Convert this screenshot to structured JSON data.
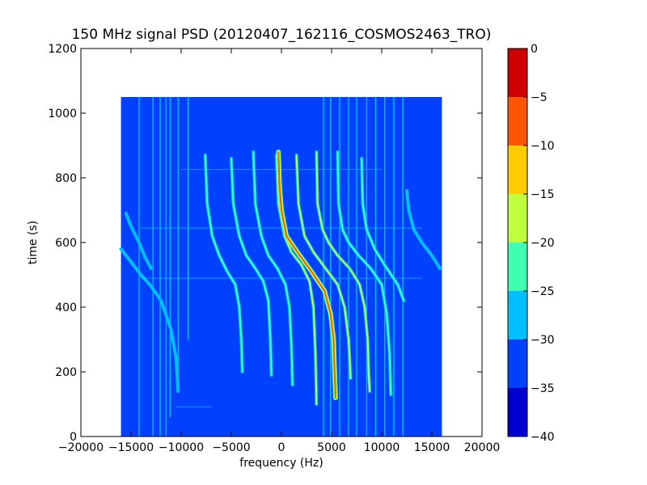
{
  "chart_data": {
    "type": "heatmap",
    "title": "150 MHz signal PSD (20120407_162116_COSMOS2463_TRO)",
    "xlabel": "frequency (Hz)",
    "ylabel": "time (s)",
    "xlim": [
      -20000,
      20000
    ],
    "ylim": [
      0,
      1200
    ],
    "xticks": [
      -20000,
      -15000,
      -10000,
      -5000,
      0,
      5000,
      10000,
      15000,
      20000
    ],
    "xtick_labels": [
      "−20000",
      "−15000",
      "−10000",
      "−5000",
      "0",
      "5000",
      "10000",
      "15000",
      "20000"
    ],
    "yticks": [
      0,
      200,
      400,
      600,
      800,
      1000,
      1200
    ],
    "ytick_labels": [
      "0",
      "200",
      "400",
      "600",
      "800",
      "1000",
      "1200"
    ],
    "data_extent": {
      "x": [
        -16000,
        16000
      ],
      "y": [
        0,
        1050
      ]
    },
    "grid": false,
    "background_level": -35,
    "colorbar": {
      "levels": [
        -40,
        -35,
        -30,
        -25,
        -20,
        -15,
        -10,
        -5,
        0
      ],
      "tick_labels": [
        "−40",
        "−35",
        "−30",
        "−25",
        "−20",
        "−15",
        "−10",
        "−5",
        "0"
      ],
      "colors": [
        "#0000cd",
        "#0040ff",
        "#00bfff",
        "#40ffb0",
        "#bfff40",
        "#ffcc00",
        "#ff5500",
        "#cc0000"
      ]
    },
    "vertical_lines": [
      {
        "x": -14200,
        "t": [
          0,
          1050
        ],
        "level": -30
      },
      {
        "x": -12800,
        "t": [
          0,
          1050
        ],
        "level": -30
      },
      {
        "x": -12100,
        "t": [
          0,
          1050
        ],
        "level": -30
      },
      {
        "x": -11500,
        "t": [
          0,
          1050
        ],
        "level": -30
      },
      {
        "x": -11100,
        "t": [
          60,
          1050
        ],
        "level": -30
      },
      {
        "x": -10300,
        "t": [
          140,
          1050
        ],
        "level": -30
      },
      {
        "x": -9300,
        "t": [
          300,
          1050
        ],
        "level": -30
      },
      {
        "x": 4200,
        "t": [
          0,
          1050
        ],
        "level": -30
      },
      {
        "x": 4900,
        "t": [
          0,
          1050
        ],
        "level": -30
      },
      {
        "x": 5800,
        "t": [
          0,
          1050
        ],
        "level": -30
      },
      {
        "x": 6700,
        "t": [
          0,
          1050
        ],
        "level": -30
      },
      {
        "x": 7500,
        "t": [
          0,
          1050
        ],
        "level": -30
      },
      {
        "x": 8500,
        "t": [
          0,
          1050
        ],
        "level": -30
      },
      {
        "x": 9400,
        "t": [
          0,
          1050
        ],
        "level": -30
      },
      {
        "x": 10300,
        "t": [
          0,
          1050
        ],
        "level": -30
      },
      {
        "x": 11200,
        "t": [
          0,
          1050
        ],
        "level": -30
      },
      {
        "x": 12100,
        "t": [
          0,
          1050
        ],
        "level": -30
      }
    ],
    "series": [
      {
        "points": [
          [
            -16000,
            580
          ],
          [
            -15000,
            540
          ],
          [
            -14000,
            500
          ],
          [
            -13000,
            465
          ],
          [
            -12000,
            420
          ],
          [
            -11000,
            330
          ],
          [
            -10500,
            240
          ],
          [
            -10300,
            140
          ]
        ],
        "level": -30
      },
      {
        "points": [
          [
            -15500,
            690
          ],
          [
            -15000,
            650
          ],
          [
            -14200,
            600
          ],
          [
            -13600,
            555
          ],
          [
            -13000,
            520
          ]
        ],
        "level": -30
      },
      {
        "points": [
          [
            -7600,
            870
          ],
          [
            -7400,
            720
          ],
          [
            -6900,
            620
          ],
          [
            -6200,
            560
          ],
          [
            -5400,
            510
          ],
          [
            -4600,
            470
          ],
          [
            -4200,
            400
          ],
          [
            -4000,
            300
          ],
          [
            -3900,
            200
          ]
        ],
        "level": -25
      },
      {
        "points": [
          [
            -5000,
            860
          ],
          [
            -4800,
            720
          ],
          [
            -4200,
            620
          ],
          [
            -3500,
            560
          ],
          [
            -2600,
            520
          ],
          [
            -1800,
            480
          ],
          [
            -1300,
            420
          ],
          [
            -1100,
            300
          ],
          [
            -1000,
            190
          ]
        ],
        "level": -25
      },
      {
        "points": [
          [
            -2800,
            880
          ],
          [
            -2600,
            720
          ],
          [
            -2000,
            620
          ],
          [
            -1300,
            560
          ],
          [
            -400,
            520
          ],
          [
            400,
            470
          ],
          [
            800,
            400
          ],
          [
            1000,
            280
          ],
          [
            1100,
            160
          ]
        ],
        "level": -25
      },
      {
        "points": [
          [
            -500,
            870
          ],
          [
            -300,
            720
          ],
          [
            300,
            620
          ],
          [
            1000,
            570
          ],
          [
            2000,
            530
          ],
          [
            2800,
            480
          ],
          [
            3200,
            400
          ],
          [
            3400,
            250
          ],
          [
            3500,
            100
          ]
        ],
        "level": -20
      },
      {
        "points": [
          [
            -300,
            880
          ],
          [
            -200,
            780
          ],
          [
            0,
            700
          ],
          [
            500,
            620
          ],
          [
            1600,
            570
          ],
          [
            3000,
            510
          ],
          [
            4300,
            450
          ],
          [
            4900,
            380
          ],
          [
            5200,
            300
          ],
          [
            5300,
            200
          ],
          [
            5400,
            120
          ]
        ],
        "level": -10
      },
      {
        "points": [
          [
            1500,
            870
          ],
          [
            1700,
            720
          ],
          [
            2300,
            620
          ],
          [
            3200,
            570
          ],
          [
            4400,
            520
          ],
          [
            5600,
            470
          ],
          [
            6300,
            400
          ],
          [
            6700,
            300
          ],
          [
            6900,
            180
          ]
        ],
        "level": -20
      },
      {
        "points": [
          [
            3500,
            880
          ],
          [
            3600,
            720
          ],
          [
            4100,
            640
          ],
          [
            4700,
            600
          ],
          [
            5600,
            560
          ],
          [
            6800,
            520
          ],
          [
            7800,
            470
          ],
          [
            8300,
            400
          ],
          [
            8600,
            300
          ],
          [
            8700,
            200
          ],
          [
            8800,
            140
          ]
        ],
        "level": -20
      },
      {
        "points": [
          [
            5600,
            880
          ],
          [
            5700,
            720
          ],
          [
            6100,
            640
          ],
          [
            6700,
            600
          ],
          [
            7700,
            560
          ],
          [
            8900,
            520
          ],
          [
            10000,
            470
          ],
          [
            10500,
            380
          ],
          [
            10800,
            250
          ],
          [
            10900,
            130
          ]
        ],
        "level": -25
      },
      {
        "points": [
          [
            8000,
            860
          ],
          [
            8100,
            720
          ],
          [
            8500,
            640
          ],
          [
            9300,
            580
          ],
          [
            10300,
            530
          ],
          [
            11600,
            470
          ],
          [
            12200,
            420
          ]
        ],
        "level": -25
      },
      {
        "points": [
          [
            12500,
            760
          ],
          [
            12700,
            700
          ],
          [
            13200,
            640
          ],
          [
            14000,
            600
          ],
          [
            15000,
            560
          ],
          [
            15800,
            520
          ]
        ],
        "level": -30
      }
    ],
    "horizontal_artifacts": [
      {
        "t": 826,
        "x": [
          -10000,
          10000
        ],
        "level": -30
      },
      {
        "t": 645,
        "x": [
          -14000,
          14000
        ],
        "level": -30
      },
      {
        "t": 490,
        "x": [
          -14000,
          14000
        ],
        "level": -30
      },
      {
        "t": 92,
        "x": [
          -10500,
          -7000
        ],
        "level": -30
      }
    ]
  }
}
